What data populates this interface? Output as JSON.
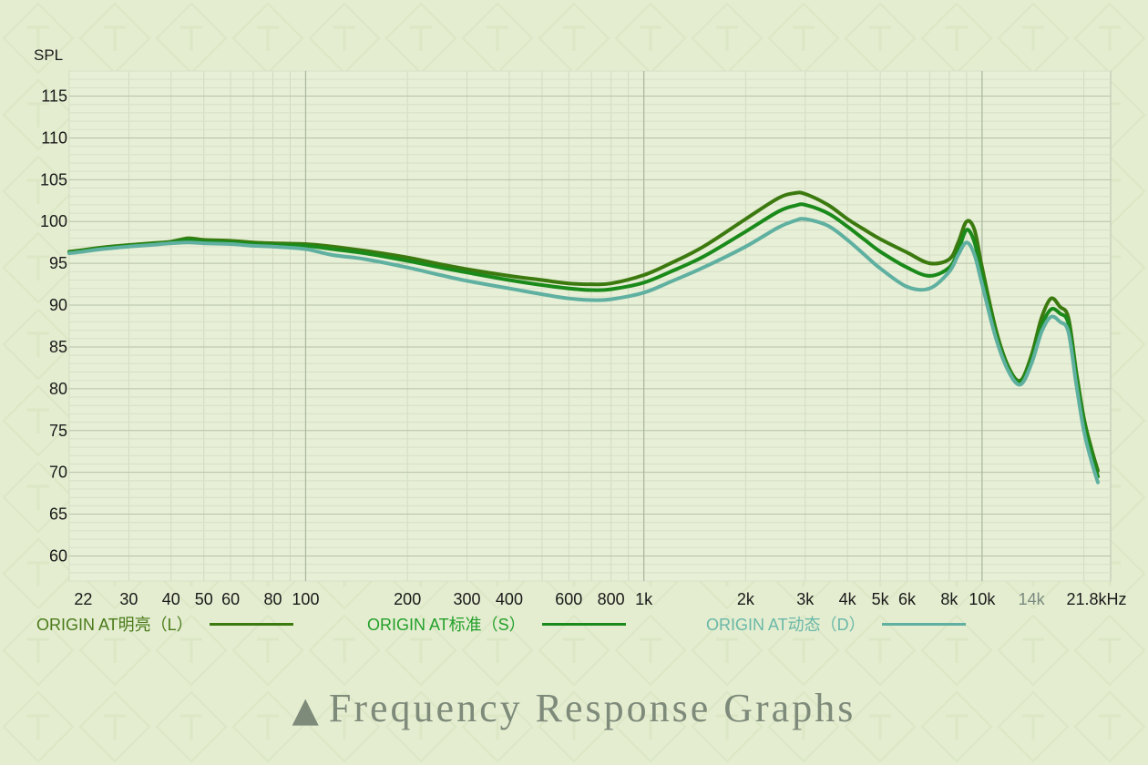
{
  "page": {
    "background": "#e4edd0",
    "caption_icon": "triangle-up-icon",
    "caption_glyph": "▲",
    "caption": "Frequency Response Graphs"
  },
  "chart_data": {
    "type": "line",
    "title": "",
    "xlabel": "",
    "ylabel": "SPL",
    "x_scale": "log",
    "xlim": [
      20,
      24000
    ],
    "ylim": [
      57,
      118
    ],
    "grid": true,
    "legend_position": "bottom",
    "x_ticks": [
      {
        "value": 22,
        "label": "22"
      },
      {
        "value": 30,
        "label": "30"
      },
      {
        "value": 40,
        "label": "40"
      },
      {
        "value": 50,
        "label": "50"
      },
      {
        "value": 60,
        "label": "60"
      },
      {
        "value": 80,
        "label": "80"
      },
      {
        "value": 100,
        "label": "100"
      },
      {
        "value": 200,
        "label": "200"
      },
      {
        "value": 300,
        "label": "300"
      },
      {
        "value": 400,
        "label": "400"
      },
      {
        "value": 600,
        "label": "600"
      },
      {
        "value": 800,
        "label": "800"
      },
      {
        "value": 1000,
        "label": "1k"
      },
      {
        "value": 2000,
        "label": "2k"
      },
      {
        "value": 3000,
        "label": "3k"
      },
      {
        "value": 4000,
        "label": "4k"
      },
      {
        "value": 5000,
        "label": "5k"
      },
      {
        "value": 6000,
        "label": "6k"
      },
      {
        "value": 8000,
        "label": "8k"
      },
      {
        "value": 10000,
        "label": "10k"
      },
      {
        "value": 14000,
        "label": "14k",
        "muted": true
      },
      {
        "value": 21800,
        "label": "21.8kHz"
      }
    ],
    "y_ticks": [
      60,
      65,
      70,
      75,
      80,
      85,
      90,
      95,
      100,
      105,
      110,
      115
    ],
    "series": [
      {
        "name": "ORIGIN AT明亮（L）",
        "color": "#3c7a10",
        "x": [
          20,
          22,
          25,
          30,
          35,
          40,
          45,
          50,
          60,
          70,
          80,
          100,
          120,
          150,
          200,
          250,
          300,
          400,
          500,
          600,
          700,
          800,
          1000,
          1200,
          1500,
          2000,
          2500,
          2800,
          3000,
          3500,
          4000,
          4500,
          5000,
          6000,
          7000,
          8000,
          8500,
          9000,
          9500,
          10000,
          11000,
          12000,
          13000,
          14000,
          15000,
          16000,
          17000,
          18000,
          19000,
          20000,
          21000,
          22000
        ],
        "y": [
          96.4,
          96.6,
          96.9,
          97.2,
          97.4,
          97.6,
          98.0,
          97.8,
          97.7,
          97.5,
          97.4,
          97.3,
          97.0,
          96.5,
          95.7,
          94.9,
          94.3,
          93.5,
          93.0,
          92.6,
          92.5,
          92.6,
          93.6,
          95.0,
          97.0,
          100.3,
          102.8,
          103.4,
          103.3,
          102.0,
          100.3,
          99.0,
          97.9,
          96.3,
          95.0,
          95.5,
          97.5,
          100.0,
          99.0,
          94.5,
          87.0,
          82.5,
          81.0,
          84.0,
          88.5,
          90.8,
          89.8,
          88.5,
          82.0,
          76.5,
          73.0,
          70.2
        ]
      },
      {
        "name": "ORIGIN AT标准（S）",
        "color": "#1a8a1a",
        "x": [
          20,
          22,
          25,
          30,
          35,
          40,
          45,
          50,
          60,
          70,
          80,
          100,
          120,
          150,
          200,
          250,
          300,
          400,
          500,
          600,
          700,
          800,
          1000,
          1200,
          1500,
          2000,
          2500,
          2800,
          3000,
          3500,
          4000,
          4500,
          5000,
          6000,
          7000,
          8000,
          8500,
          9000,
          9500,
          10000,
          11000,
          12000,
          13000,
          14000,
          15000,
          16000,
          17000,
          18000,
          19000,
          20000,
          21000,
          22000
        ],
        "y": [
          96.3,
          96.5,
          96.8,
          97.1,
          97.3,
          97.5,
          97.8,
          97.6,
          97.5,
          97.3,
          97.2,
          97.1,
          96.7,
          96.2,
          95.3,
          94.5,
          93.9,
          93.0,
          92.4,
          92.0,
          91.8,
          91.9,
          92.7,
          94.0,
          95.8,
          98.8,
          101.2,
          101.9,
          102.0,
          101.0,
          99.4,
          97.8,
          96.4,
          94.5,
          93.5,
          94.5,
          96.5,
          99.0,
          97.5,
          93.5,
          86.5,
          82.3,
          80.8,
          83.5,
          87.5,
          89.5,
          89.0,
          87.8,
          81.5,
          76.0,
          72.5,
          69.5
        ]
      },
      {
        "name": "ORIGIN AT动态（D）",
        "color": "#5fb0a0",
        "x": [
          20,
          22,
          25,
          30,
          35,
          40,
          45,
          50,
          60,
          70,
          80,
          100,
          120,
          150,
          200,
          250,
          300,
          400,
          500,
          600,
          700,
          800,
          1000,
          1200,
          1500,
          2000,
          2500,
          2800,
          3000,
          3500,
          4000,
          4500,
          5000,
          6000,
          7000,
          8000,
          8500,
          9000,
          9500,
          10000,
          11000,
          12000,
          13000,
          14000,
          15000,
          16000,
          17000,
          18000,
          19000,
          20000,
          21000,
          22000
        ],
        "y": [
          96.2,
          96.4,
          96.7,
          97.0,
          97.2,
          97.4,
          97.5,
          97.4,
          97.3,
          97.1,
          97.0,
          96.7,
          96.0,
          95.5,
          94.5,
          93.6,
          92.9,
          92.0,
          91.3,
          90.8,
          90.6,
          90.7,
          91.5,
          92.8,
          94.5,
          97.0,
          99.3,
          100.1,
          100.3,
          99.5,
          97.8,
          96.0,
          94.4,
          92.2,
          92.0,
          94.0,
          96.0,
          97.5,
          96.0,
          92.5,
          86.0,
          82.0,
          80.5,
          83.0,
          86.8,
          88.6,
          88.0,
          86.8,
          80.5,
          75.0,
          71.5,
          68.8
        ]
      }
    ]
  }
}
